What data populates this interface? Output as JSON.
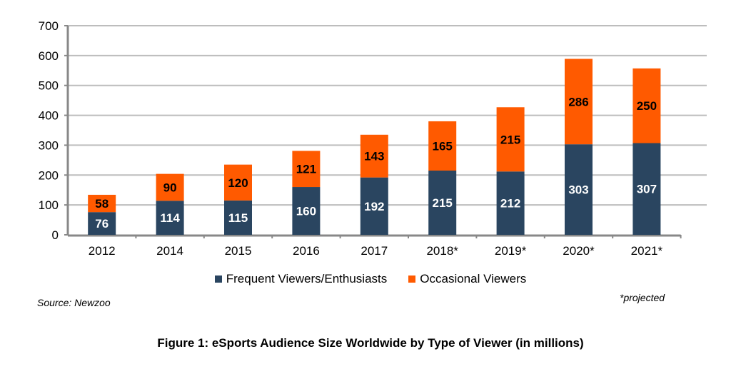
{
  "chart_data": {
    "type": "bar",
    "stacked": true,
    "title": "Figure 1: eSports Audience Size Worldwide by Type of Viewer (in millions)",
    "categories": [
      "2012",
      "2014",
      "2015",
      "2016",
      "2017",
      "2018*",
      "2019*",
      "2020*",
      "2021*"
    ],
    "series": [
      {
        "name": "Frequent Viewers/Enthusiasts",
        "color": "#2a4560",
        "values": [
          76,
          114,
          115,
          160,
          192,
          215,
          212,
          303,
          307
        ]
      },
      {
        "name": "Occasional Viewers",
        "color": "#ff5a00",
        "values": [
          58,
          90,
          120,
          121,
          143,
          165,
          215,
          286,
          250
        ]
      }
    ],
    "ylim": [
      0,
      700
    ],
    "yticks": [
      0,
      100,
      200,
      300,
      400,
      500,
      600,
      700
    ],
    "grid": true,
    "legend": "bottom",
    "source": "Source: Newzoo",
    "note": "*projected"
  }
}
